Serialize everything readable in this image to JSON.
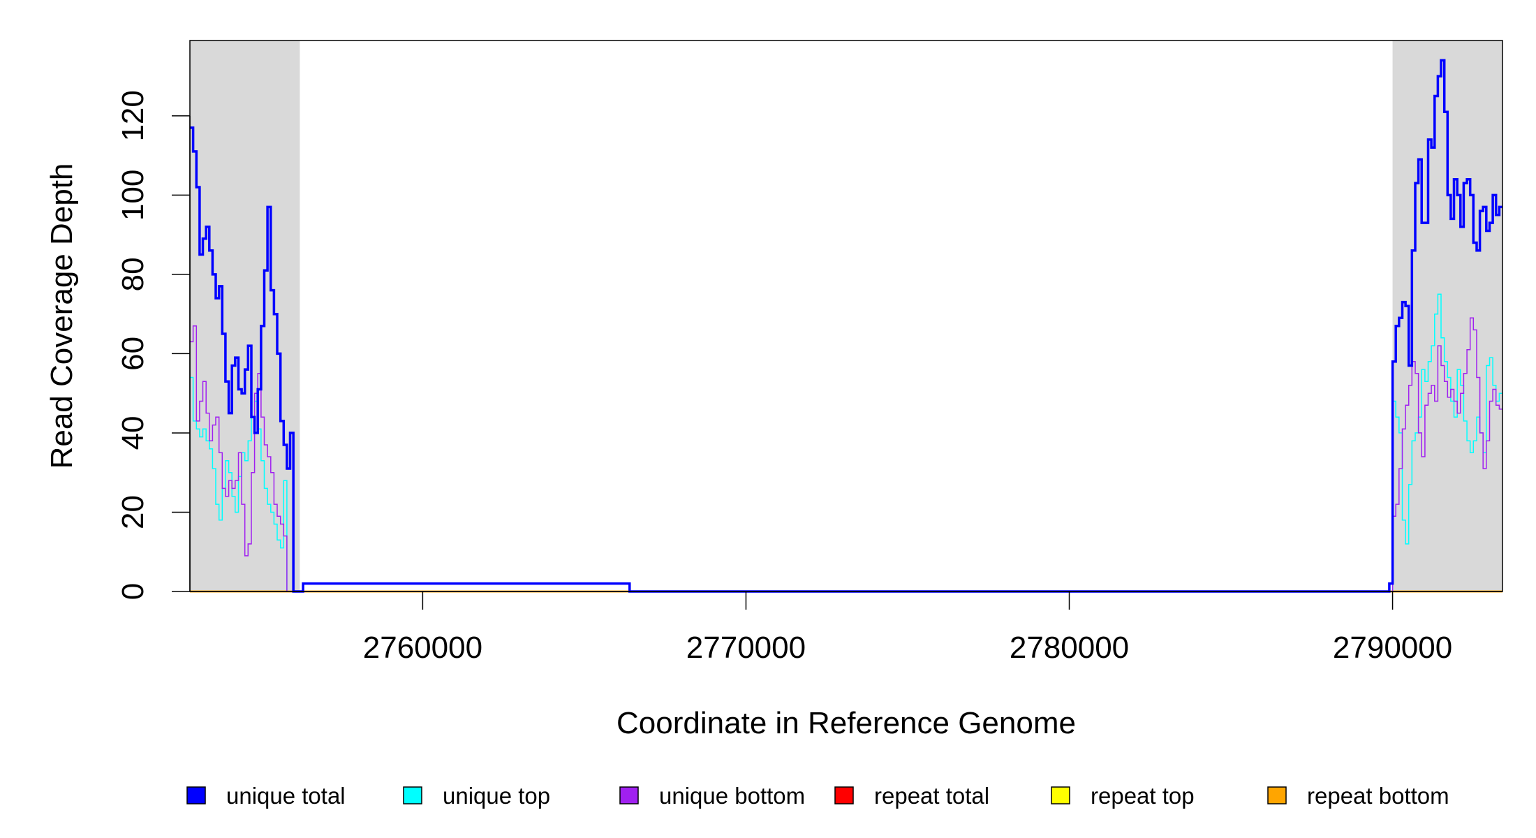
{
  "chart_data": {
    "type": "line",
    "title": "",
    "xlabel": "Coordinate in Reference Genome",
    "ylabel": "Read Coverage Depth",
    "xlim": [
      2752800,
      2793400
    ],
    "ylim": [
      0,
      139
    ],
    "x_ticks": [
      2760000,
      2770000,
      2780000,
      2790000
    ],
    "x_tick_labels": [
      "2760000",
      "2770000",
      "2780000",
      "2790000"
    ],
    "y_ticks": [
      0,
      20,
      40,
      60,
      80,
      100,
      120
    ],
    "y_tick_labels": [
      "0",
      "20",
      "40",
      "60",
      "80",
      "100",
      "120"
    ],
    "shaded_regions": [
      [
        2752800,
        2756200
      ],
      [
        2790000,
        2793400
      ]
    ],
    "shade_color": "#d9d9d9",
    "grid": false,
    "legend_position": "bottom",
    "series": [
      {
        "name": "unique total",
        "color": "#0000ff",
        "x": [
          2752800,
          2752900,
          2753000,
          2753100,
          2753200,
          2753300,
          2753400,
          2753500,
          2753600,
          2753700,
          2753800,
          2753900,
          2754000,
          2754100,
          2754200,
          2754300,
          2754400,
          2754500,
          2754600,
          2754700,
          2754800,
          2754900,
          2755000,
          2755100,
          2755200,
          2755300,
          2755400,
          2755500,
          2755600,
          2755700,
          2755800,
          2755900,
          2756000,
          2756100,
          2756200,
          2756300,
          2766400,
          2766500,
          2766600,
          2789900,
          2790000,
          2790100,
          2790200,
          2790300,
          2790400,
          2790500,
          2790600,
          2790700,
          2790800,
          2790900,
          2791000,
          2791100,
          2791200,
          2791300,
          2791400,
          2791500,
          2791600,
          2791700,
          2791800,
          2791900,
          2792000,
          2792100,
          2792200,
          2792300,
          2792400,
          2792500,
          2792600,
          2792700,
          2792800,
          2792900,
          2793000,
          2793100,
          2793200,
          2793300
        ],
        "y": [
          117,
          111,
          102,
          85,
          89,
          92,
          86,
          80,
          74,
          77,
          65,
          53,
          45,
          57,
          59,
          51,
          50,
          56,
          62,
          44,
          40,
          51,
          67,
          81,
          97,
          76,
          70,
          60,
          43,
          37,
          31,
          40,
          0,
          0,
          0,
          2,
          0,
          0,
          0,
          2,
          58,
          67,
          69,
          73,
          72,
          57,
          86,
          103,
          109,
          93,
          93,
          114,
          112,
          125,
          130,
          134,
          121,
          100,
          94,
          104,
          100,
          92,
          103,
          104,
          100,
          88,
          86,
          96,
          97,
          91,
          93,
          100,
          95,
          97
        ]
      },
      {
        "name": "unique top",
        "color": "#00ffff",
        "x": [
          2752800,
          2752900,
          2753000,
          2753100,
          2753200,
          2753300,
          2753400,
          2753500,
          2753600,
          2753700,
          2753800,
          2753900,
          2754000,
          2754100,
          2754200,
          2754300,
          2754400,
          2754500,
          2754600,
          2754700,
          2754800,
          2754900,
          2755000,
          2755100,
          2755200,
          2755300,
          2755400,
          2755500,
          2755600,
          2755700,
          2755800,
          2755900,
          2756000,
          2756100,
          2789900,
          2790000,
          2790100,
          2790200,
          2790300,
          2790400,
          2790500,
          2790600,
          2790700,
          2790800,
          2790900,
          2791000,
          2791100,
          2791200,
          2791300,
          2791400,
          2791500,
          2791600,
          2791700,
          2791800,
          2791900,
          2792000,
          2792100,
          2792200,
          2792300,
          2792400,
          2792500,
          2792600,
          2792700,
          2792800,
          2792900,
          2793000,
          2793100,
          2793200,
          2793300
        ],
        "y": [
          54,
          43,
          41,
          39,
          41,
          38,
          36,
          31,
          22,
          18,
          26,
          33,
          30,
          24,
          20,
          29,
          35,
          33,
          38,
          44,
          48,
          41,
          33,
          26,
          22,
          20,
          17,
          13,
          11,
          28,
          0,
          0,
          0,
          0,
          0,
          48,
          44,
          40,
          18,
          12,
          27,
          38,
          40,
          44,
          56,
          53,
          58,
          62,
          70,
          75,
          64,
          58,
          54,
          48,
          44,
          56,
          52,
          43,
          38,
          35,
          38,
          44,
          40,
          35,
          57,
          59,
          52,
          48,
          50
        ]
      },
      {
        "name": "unique bottom",
        "color": "#a020f0",
        "x": [
          2752800,
          2752900,
          2753000,
          2753100,
          2753200,
          2753300,
          2753400,
          2753500,
          2753600,
          2753700,
          2753800,
          2753900,
          2754000,
          2754100,
          2754200,
          2754300,
          2754400,
          2754500,
          2754600,
          2754700,
          2754800,
          2754900,
          2755000,
          2755100,
          2755200,
          2755300,
          2755400,
          2755500,
          2755600,
          2755700,
          2755800,
          2755900,
          2756000,
          2756100,
          2789900,
          2790000,
          2790100,
          2790200,
          2790300,
          2790400,
          2790500,
          2790600,
          2790700,
          2790800,
          2790900,
          2791000,
          2791100,
          2791200,
          2791300,
          2791400,
          2791500,
          2791600,
          2791700,
          2791800,
          2791900,
          2792000,
          2792100,
          2792200,
          2792300,
          2792400,
          2792500,
          2792600,
          2792700,
          2792800,
          2792900,
          2793000,
          2793100,
          2793200,
          2793300
        ],
        "y": [
          63,
          67,
          43,
          48,
          53,
          45,
          38,
          42,
          44,
          35,
          26,
          24,
          28,
          26,
          28,
          35,
          22,
          9,
          12,
          30,
          50,
          55,
          44,
          37,
          34,
          30,
          22,
          19,
          17,
          14,
          0,
          0,
          0,
          0,
          0,
          19,
          22,
          31,
          41,
          47,
          52,
          58,
          55,
          40,
          34,
          47,
          50,
          52,
          48,
          62,
          57,
          53,
          49,
          51,
          48,
          45,
          50,
          55,
          61,
          69,
          66,
          54,
          40,
          31,
          38,
          48,
          51,
          47,
          46
        ]
      },
      {
        "name": "repeat total",
        "color": "#ff0000",
        "x": [
          2752800,
          2793400
        ],
        "y": [
          0,
          0
        ]
      },
      {
        "name": "repeat top",
        "color": "#ffff00",
        "x": [
          2752800,
          2793400
        ],
        "y": [
          0,
          0
        ]
      },
      {
        "name": "repeat bottom",
        "color": "#ffa500",
        "x": [
          2752800,
          2793400
        ],
        "y": [
          0,
          0
        ]
      }
    ]
  }
}
